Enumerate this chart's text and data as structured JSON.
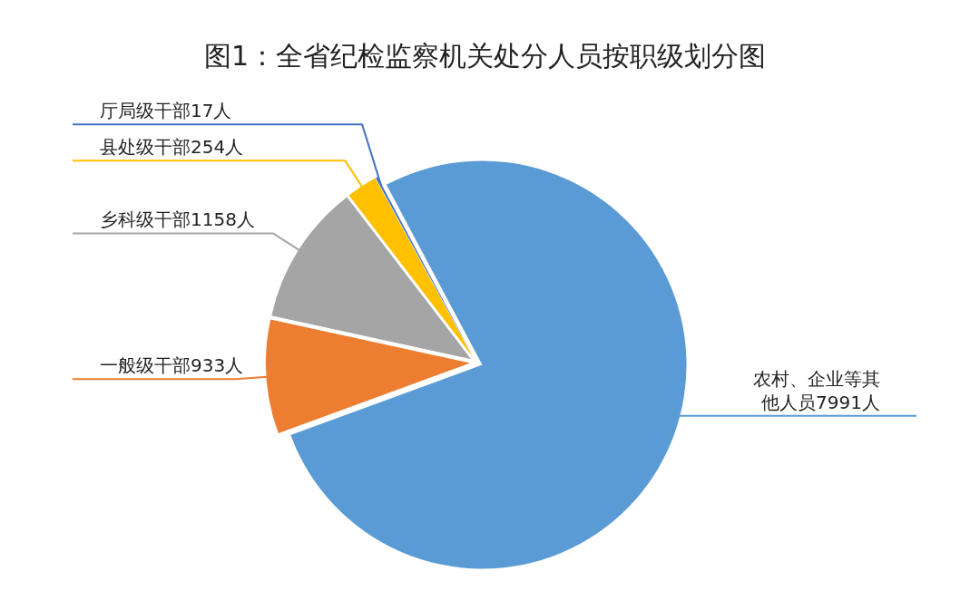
{
  "chart_data": {
    "type": "pie",
    "title": "图1：全省纪检监察机关处分人员按职级划分图",
    "categories": [
      "农村、企业等其他人员7991人",
      "一般级干部933人",
      "乡科级干部1158人",
      "县处级干部254人",
      "厅局级干部17人"
    ],
    "values": [
      7991,
      933,
      1158,
      254,
      17
    ],
    "colors": [
      "#5b9bd5",
      "#ed7d31",
      "#a5a5a5",
      "#ffc000",
      "#4472c4"
    ]
  }
}
